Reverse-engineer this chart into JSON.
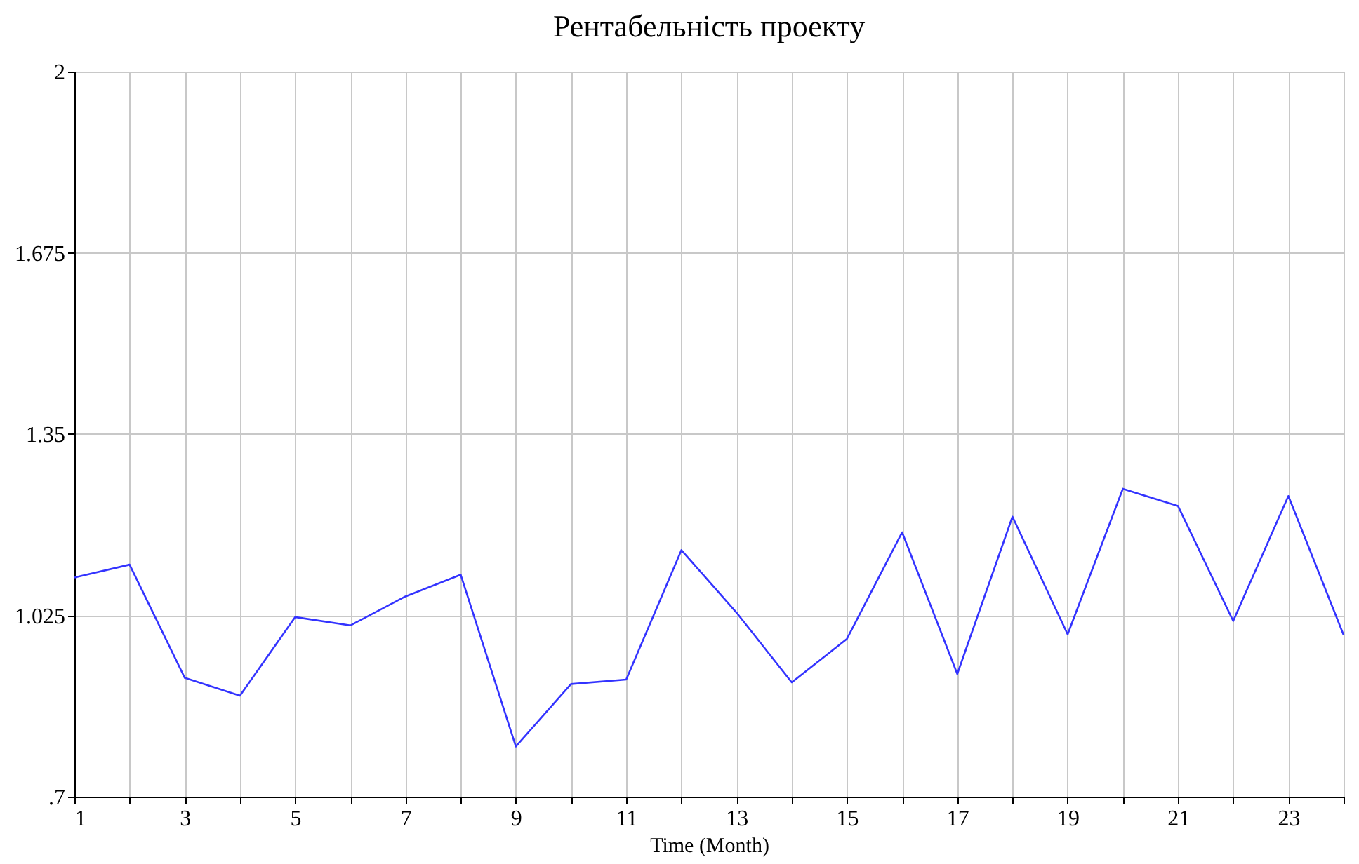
{
  "chart_data": {
    "type": "line",
    "title": "Рентабельність проекту",
    "xlabel": "Time (Month)",
    "x": [
      1,
      2,
      3,
      4,
      5,
      6,
      7,
      8,
      9,
      10,
      11,
      12,
      13,
      14,
      15,
      16,
      17,
      18,
      19,
      20,
      21,
      22,
      23,
      24
    ],
    "series": [
      {
        "color": "#3333ff",
        "values": [
          1.093,
          1.116,
          0.913,
          0.881,
          1.022,
          1.007,
          1.059,
          1.098,
          0.79,
          0.902,
          0.91,
          1.142,
          1.03,
          0.905,
          0.983,
          1.174,
          0.92,
          1.202,
          0.991,
          1.252,
          1.221,
          1.015,
          1.239,
          0.99
        ]
      }
    ],
    "xlim": [
      1,
      24
    ],
    "xticks": [
      1,
      {
        "value": 2,
        "label": null
      },
      3,
      {
        "value": 4,
        "label": null
      },
      5,
      {
        "value": 6,
        "label": null
      },
      7,
      {
        "value": 8,
        "label": null
      },
      9,
      {
        "value": 10,
        "label": null
      },
      11,
      {
        "value": 12,
        "label": null
      },
      13,
      {
        "value": 14,
        "label": null
      },
      15,
      {
        "value": 16,
        "label": null
      },
      17,
      {
        "value": 18,
        "label": null
      },
      19,
      {
        "value": 20,
        "label": null
      },
      21,
      {
        "value": 22,
        "label": null
      },
      23,
      {
        "value": 24,
        "label": null
      }
    ],
    "ylim": [
      0.7,
      2
    ],
    "yticks": [
      {
        "value": 0.7,
        "label": ".7"
      },
      1.025,
      1.35,
      1.675,
      2
    ],
    "grid": true,
    "marker": "none",
    "line_style": "solid"
  }
}
